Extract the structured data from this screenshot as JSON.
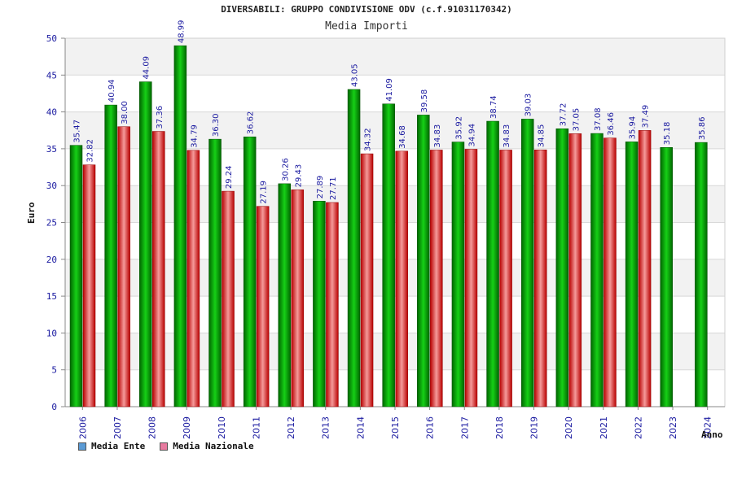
{
  "title": "DIVERSABILI: GRUPPO CONDIVISIONE ODV (c.f.91031170342)",
  "subtitle": "Media Importi",
  "chart_data": {
    "type": "bar",
    "categories": [
      "2006",
      "2007",
      "2008",
      "2009",
      "2010",
      "2011",
      "2012",
      "2013",
      "2014",
      "2015",
      "2016",
      "2017",
      "2018",
      "2019",
      "2020",
      "2021",
      "2022",
      "2023",
      "2024"
    ],
    "series": [
      {
        "name": "Media Ente",
        "color": "#0aa80a",
        "values": [
          35.47,
          40.94,
          44.09,
          48.99,
          36.3,
          36.62,
          30.26,
          27.89,
          43.05,
          41.09,
          39.58,
          35.92,
          38.74,
          39.03,
          37.72,
          37.08,
          35.94,
          35.18,
          35.86
        ],
        "labels": [
          "35.47",
          "40.94",
          "44.09",
          "48.99",
          "36.30",
          "36.62",
          "30.26",
          "27.89",
          "43.05",
          "41.09",
          "39.58",
          "35.92",
          "38.74",
          "39.03",
          "37.72",
          "37.08",
          "35.94",
          "35.18",
          "35.86"
        ]
      },
      {
        "name": "Media Nazionale",
        "color": "#e03a3a",
        "values": [
          32.82,
          38.0,
          37.36,
          34.79,
          29.24,
          27.19,
          29.43,
          27.71,
          34.32,
          34.68,
          34.83,
          34.94,
          34.83,
          34.85,
          37.05,
          36.46,
          37.49,
          null,
          null
        ],
        "labels": [
          "32.82",
          "38.00",
          "37.36",
          "34.79",
          "29.24",
          "27.19",
          "29.43",
          "27.71",
          "34.32",
          "34.68",
          "34.83",
          "34.94",
          "34.83",
          "34.85",
          "37.05",
          "36.46",
          "37.49",
          "",
          ""
        ]
      }
    ],
    "xlabel": "Anno",
    "ylabel": "Euro",
    "ylim": [
      0,
      50
    ],
    "yticks": [
      "0",
      "5",
      "10",
      "15",
      "20",
      "25",
      "30",
      "35",
      "40",
      "45",
      "50"
    ],
    "legend_position": "bottom-left",
    "grid": true
  },
  "legend": {
    "items": [
      {
        "label": "Media Ente",
        "color": "#5b9bd5"
      },
      {
        "label": "Media Nazionale",
        "color": "#e87ba0"
      }
    ]
  }
}
